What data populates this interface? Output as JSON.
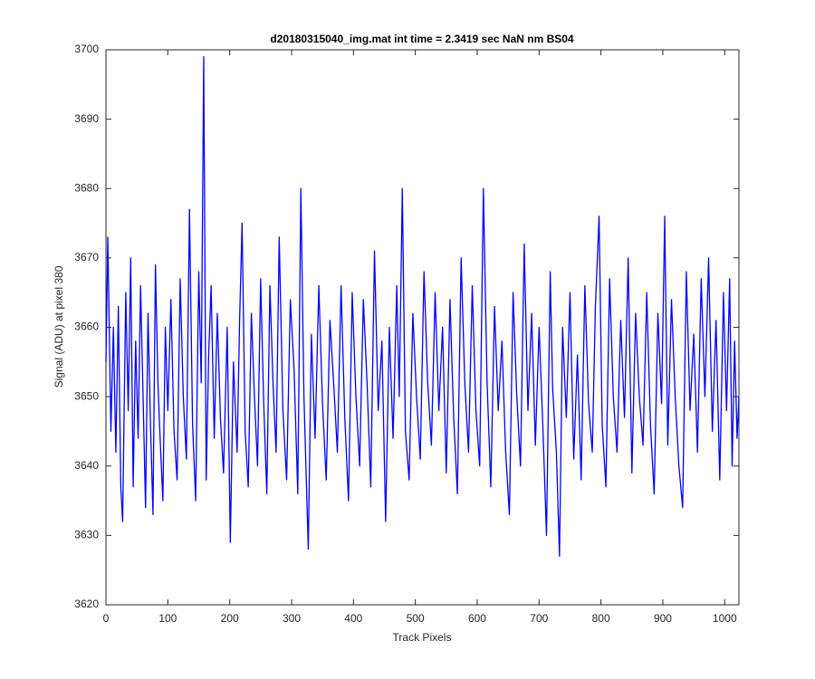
{
  "chart_data": {
    "type": "line",
    "title": "d20180315040_img.mat int time = 2.3419 sec  NaN nm BS04",
    "x_label": "Track Pixels",
    "y_label": "Signal (ADU) at pixel 380",
    "xlim": [
      0,
      1023
    ],
    "ylim": [
      3620,
      3700
    ],
    "xticks": [
      0,
      100,
      200,
      300,
      400,
      500,
      600,
      700,
      800,
      900,
      1000
    ],
    "yticks": [
      3620,
      3630,
      3640,
      3650,
      3660,
      3670,
      3680,
      3690,
      3700
    ],
    "grid": false,
    "x": [
      0,
      3,
      8,
      12,
      16,
      20,
      24,
      27,
      32,
      36,
      40,
      44,
      48,
      52,
      56,
      60,
      64,
      68,
      72,
      76,
      80,
      84,
      88,
      92,
      96,
      100,
      105,
      110,
      115,
      120,
      125,
      130,
      135,
      140,
      145,
      150,
      154,
      158,
      162,
      166,
      170,
      175,
      180,
      185,
      190,
      196,
      201,
      206,
      212,
      216,
      220,
      225,
      230,
      235,
      240,
      245,
      250,
      255,
      260,
      265,
      270,
      275,
      280,
      286,
      292,
      298,
      304,
      310,
      315,
      320,
      327,
      332,
      338,
      344,
      350,
      356,
      362,
      368,
      374,
      380,
      386,
      392,
      398,
      404,
      410,
      416,
      422,
      428,
      434,
      440,
      446,
      452,
      458,
      464,
      470,
      474,
      479,
      484,
      490,
      496,
      502,
      508,
      514,
      520,
      526,
      532,
      538,
      544,
      550,
      556,
      562,
      568,
      574,
      580,
      586,
      592,
      598,
      604,
      610,
      616,
      622,
      628,
      634,
      640,
      646,
      652,
      658,
      664,
      670,
      676,
      682,
      688,
      694,
      700,
      706,
      712,
      718,
      722,
      728,
      733,
      738,
      744,
      750,
      756,
      762,
      768,
      774,
      780,
      786,
      791,
      797,
      802,
      808,
      814,
      820,
      826,
      832,
      838,
      844,
      850,
      856,
      862,
      868,
      874,
      880,
      886,
      892,
      898,
      903,
      908,
      914,
      920,
      926,
      932,
      938,
      944,
      950,
      956,
      962,
      968,
      974,
      980,
      986,
      992,
      998,
      1003,
      1008,
      1012,
      1016,
      1020,
      1023
    ],
    "series": [
      {
        "color": "#0000ff",
        "values": [
          3655,
          3673,
          3645,
          3660,
          3642,
          3663,
          3637,
          3632,
          3665,
          3648,
          3670,
          3637,
          3658,
          3644,
          3666,
          3650,
          3634,
          3662,
          3646,
          3633,
          3669,
          3652,
          3643,
          3635,
          3660,
          3648,
          3664,
          3645,
          3638,
          3667,
          3650,
          3641,
          3677,
          3646,
          3635,
          3668,
          3652,
          3699,
          3638,
          3656,
          3666,
          3644,
          3662,
          3647,
          3639,
          3660,
          3629,
          3655,
          3642,
          3661,
          3675,
          3645,
          3637,
          3662,
          3650,
          3640,
          3667,
          3649,
          3636,
          3666,
          3652,
          3642,
          3673,
          3648,
          3638,
          3664,
          3654,
          3636,
          3680,
          3650,
          3628,
          3659,
          3644,
          3666,
          3649,
          3638,
          3661,
          3652,
          3642,
          3666,
          3647,
          3635,
          3665,
          3650,
          3640,
          3664,
          3652,
          3637,
          3671,
          3648,
          3658,
          3632,
          3660,
          3644,
          3666,
          3650,
          3680,
          3645,
          3638,
          3662,
          3650,
          3641,
          3668,
          3652,
          3643,
          3665,
          3648,
          3660,
          3639,
          3664,
          3647,
          3636,
          3670,
          3652,
          3642,
          3666,
          3648,
          3640,
          3680,
          3652,
          3637,
          3663,
          3648,
          3658,
          3642,
          3633,
          3665,
          3650,
          3640,
          3672,
          3648,
          3662,
          3643,
          3660,
          3646,
          3630,
          3668,
          3651,
          3642,
          3627,
          3660,
          3647,
          3665,
          3641,
          3656,
          3638,
          3666,
          3649,
          3642,
          3663,
          3676,
          3646,
          3637,
          3667,
          3650,
          3642,
          3661,
          3647,
          3670,
          3639,
          3662,
          3650,
          3643,
          3665,
          3646,
          3636,
          3662,
          3649,
          3676,
          3643,
          3664,
          3650,
          3640,
          3634,
          3668,
          3648,
          3659,
          3642,
          3667,
          3650,
          3670,
          3645,
          3661,
          3638,
          3665,
          3648,
          3667,
          3640,
          3658,
          3644,
          3650
        ]
      }
    ]
  }
}
